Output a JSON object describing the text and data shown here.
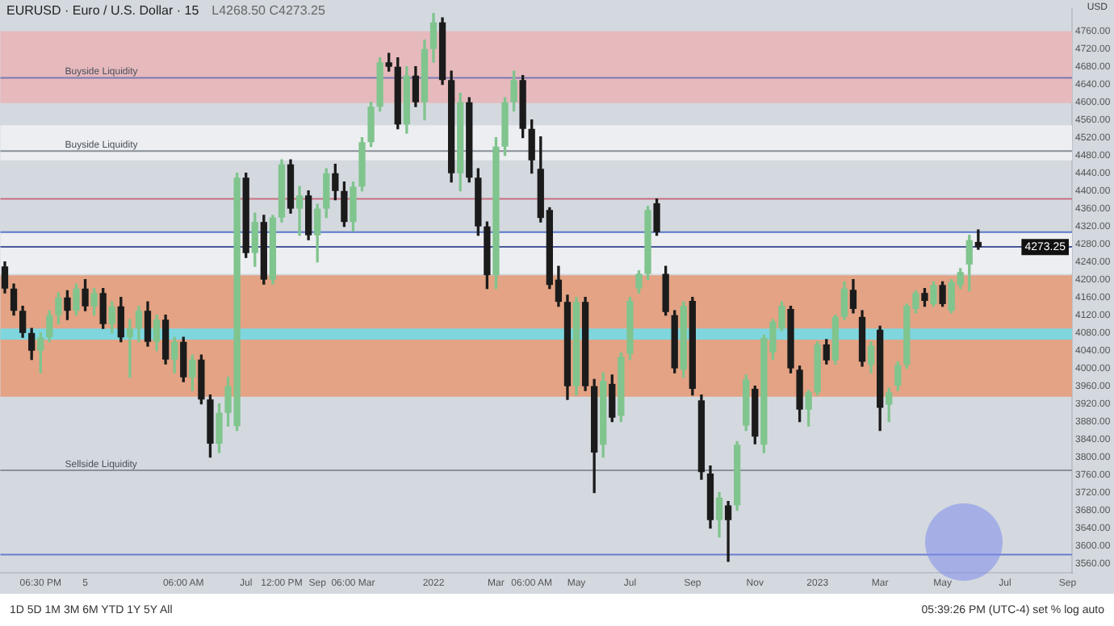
{
  "chart_data": {
    "type": "candlestick",
    "title": "EURUSD · Euro / U.S. Dollar · 15",
    "subtitle": "L4268.50 C4273.25",
    "categories": [
      null,
      null,
      null,
      null,
      "06:30 PM",
      null,
      null,
      null,
      null,
      "5",
      null,
      null,
      null,
      null,
      null,
      null,
      null,
      null,
      null,
      null,
      "06:00 AM",
      null,
      null,
      null,
      null,
      null,
      null,
      "Jul",
      null,
      null,
      null,
      "12:00 PM",
      null,
      null,
      null,
      "Sep",
      null,
      null,
      null,
      "06:00 Mar",
      null,
      null,
      null,
      null,
      null,
      null,
      null,
      null,
      "2022",
      null,
      null,
      null,
      null,
      null,
      null,
      "Mar",
      null,
      null,
      null,
      "06:00 AM",
      null,
      null,
      null,
      null,
      "May",
      null,
      null,
      null,
      null,
      null,
      "Jul",
      null,
      null,
      null,
      null,
      null,
      null,
      "Sep",
      null,
      null,
      null,
      null,
      null,
      null,
      "Nov",
      null,
      null,
      null,
      null,
      null,
      null,
      "2023",
      null,
      null,
      null,
      null,
      null,
      null,
      "Mar",
      null,
      null,
      null,
      null,
      null,
      null,
      "May",
      null,
      null,
      null,
      null,
      null,
      null,
      "Jul",
      null,
      null,
      null,
      null,
      null,
      null,
      "Sep"
    ],
    "ohlc": [
      [
        4230,
        4240,
        4170,
        4180
      ],
      [
        4180,
        4190,
        4120,
        4130
      ],
      [
        4130,
        4140,
        4070,
        4080
      ],
      [
        4080,
        4090,
        4020,
        4040
      ],
      [
        4040,
        4080,
        3990,
        4070
      ],
      [
        4070,
        4130,
        4060,
        4120
      ],
      [
        4120,
        4170,
        4100,
        4160
      ],
      [
        4160,
        4175,
        4110,
        4130
      ],
      [
        4130,
        4190,
        4120,
        4180
      ],
      [
        4180,
        4200,
        4130,
        4140
      ],
      [
        4140,
        4180,
        4120,
        4170
      ],
      [
        4170,
        4180,
        4090,
        4100
      ],
      [
        4100,
        4150,
        4080,
        4140
      ],
      [
        4140,
        4160,
        4060,
        4070
      ],
      [
        4070,
        4110,
        3980,
        4090
      ],
      [
        4090,
        4140,
        4060,
        4130
      ],
      [
        4130,
        4150,
        4050,
        4060
      ],
      [
        4060,
        4120,
        4040,
        4110
      ],
      [
        4110,
        4120,
        4010,
        4020
      ],
      [
        4020,
        4070,
        3990,
        4060
      ],
      [
        4060,
        4070,
        3970,
        3980
      ],
      [
        3980,
        4030,
        3950,
        4020
      ],
      [
        4020,
        4030,
        3920,
        3930
      ],
      [
        3930,
        3940,
        3800,
        3830
      ],
      [
        3830,
        3920,
        3810,
        3900
      ],
      [
        3900,
        3980,
        3870,
        3960
      ],
      [
        3870,
        4440,
        3860,
        4430
      ],
      [
        4430,
        4440,
        4250,
        4260
      ],
      [
        4260,
        4350,
        4230,
        4330
      ],
      [
        4330,
        4345,
        4190,
        4200
      ],
      [
        4200,
        4345,
        4190,
        4340
      ],
      [
        4340,
        4470,
        4330,
        4460
      ],
      [
        4460,
        4470,
        4350,
        4360
      ],
      [
        4360,
        4410,
        4300,
        4390
      ],
      [
        4390,
        4400,
        4290,
        4300
      ],
      [
        4300,
        4370,
        4240,
        4360
      ],
      [
        4360,
        4450,
        4340,
        4440
      ],
      [
        4440,
        4460,
        4380,
        4400
      ],
      [
        4400,
        4420,
        4320,
        4330
      ],
      [
        4330,
        4420,
        4310,
        4410
      ],
      [
        4410,
        4520,
        4400,
        4510
      ],
      [
        4510,
        4600,
        4500,
        4590
      ],
      [
        4590,
        4700,
        4580,
        4690
      ],
      [
        4690,
        4710,
        4670,
        4680
      ],
      [
        4680,
        4700,
        4540,
        4550
      ],
      [
        4550,
        4680,
        4530,
        4660
      ],
      [
        4660,
        4680,
        4590,
        4600
      ],
      [
        4600,
        4740,
        4560,
        4720
      ],
      [
        4720,
        4800,
        4690,
        4780
      ],
      [
        4780,
        4790,
        4640,
        4650
      ],
      [
        4650,
        4670,
        4420,
        4440
      ],
      [
        4440,
        4620,
        4400,
        4600
      ],
      [
        4600,
        4610,
        4420,
        4430
      ],
      [
        4430,
        4450,
        4300,
        4320
      ],
      [
        4320,
        4330,
        4180,
        4210
      ],
      [
        4210,
        4520,
        4180,
        4500
      ],
      [
        4500,
        4610,
        4480,
        4600
      ],
      [
        4600,
        4670,
        4580,
        4650
      ],
      [
        4650,
        4660,
        4520,
        4540
      ],
      [
        4540,
        4560,
        4440,
        4469
      ],
      [
        4450,
        4522,
        4330,
        4339
      ],
      [
        4357,
        4362,
        4180,
        4188
      ],
      [
        4200,
        4230,
        4140,
        4150
      ],
      [
        4150,
        4165,
        3930,
        3960
      ],
      [
        3960,
        4160,
        3940,
        4150
      ],
      [
        4150,
        4160,
        3950,
        3960
      ],
      [
        3960,
        3975,
        3720,
        3810
      ],
      [
        3828,
        3990,
        3800,
        3972
      ],
      [
        3965,
        3985,
        3880,
        3889
      ],
      [
        3893,
        4035,
        3880,
        4026
      ],
      [
        4033,
        4160,
        4020,
        4152
      ],
      [
        4180,
        4220,
        4170,
        4213
      ],
      [
        4213,
        4365,
        4200,
        4357
      ],
      [
        4372,
        4382,
        4300,
        4307
      ],
      [
        4213,
        4230,
        4120,
        4127
      ],
      [
        4120,
        4130,
        3990,
        4000
      ],
      [
        3997,
        4150,
        3980,
        4141
      ],
      [
        4152,
        4160,
        3940,
        3954
      ],
      [
        3928,
        3940,
        3750,
        3766
      ],
      [
        3763,
        3780,
        3640,
        3658
      ],
      [
        3658,
        3720,
        3620,
        3709
      ],
      [
        3691,
        3700,
        3565,
        3658
      ],
      [
        3691,
        3835,
        3680,
        3828
      ],
      [
        3871,
        3985,
        3860,
        3975
      ],
      [
        3954,
        3960,
        3830,
        3846
      ],
      [
        3828,
        4075,
        3810,
        4069
      ],
      [
        4036,
        4110,
        4020,
        4105
      ],
      [
        4090,
        4150,
        4085,
        4141
      ],
      [
        4134,
        4140,
        3990,
        4000
      ],
      [
        3997,
        4005,
        3880,
        3907
      ],
      [
        3907,
        3950,
        3870,
        3946
      ],
      [
        3946,
        4060,
        3940,
        4054
      ],
      [
        4054,
        4065,
        4010,
        4018
      ],
      [
        4018,
        4120,
        4010,
        4116
      ],
      [
        4116,
        4195,
        4110,
        4180
      ],
      [
        4177,
        4200,
        4125,
        4134
      ],
      [
        4116,
        4130,
        4005,
        4015
      ],
      [
        4008,
        4060,
        3990,
        4051
      ],
      [
        4087,
        4095,
        3860,
        3911
      ],
      [
        3918,
        3955,
        3880,
        3946
      ],
      [
        3961,
        4015,
        3950,
        4008
      ],
      [
        4008,
        4145,
        4000,
        4141
      ],
      [
        4134,
        4175,
        4125,
        4170
      ],
      [
        4170,
        4180,
        4140,
        4152
      ],
      [
        4145,
        4195,
        4140,
        4188
      ],
      [
        4188,
        4195,
        4140,
        4145
      ],
      [
        4130,
        4200,
        4125,
        4195
      ],
      [
        4188,
        4225,
        4180,
        4217
      ],
      [
        4234,
        4300,
        4175,
        4289
      ],
      [
        4285,
        4312,
        4268.5,
        4273.25
      ],
      null,
      null,
      null,
      null,
      null,
      null,
      null,
      null,
      null,
      null
    ],
    "colors": [
      "#1b1b1b",
      "#1b1b1b",
      "#1b1b1b",
      "#1b1b1b",
      "#80c48e",
      "#80c48e",
      "#80c48e",
      "#1b1b1b",
      "#80c48e",
      "#1b1b1b",
      "#80c48e",
      "#1b1b1b",
      "#80c48e",
      "#1b1b1b",
      "#80c48e",
      "#80c48e",
      "#1b1b1b",
      "#80c48e",
      "#1b1b1b",
      "#80c48e",
      "#1b1b1b",
      "#80c48e",
      "#1b1b1b",
      "#1b1b1b",
      "#80c48e",
      "#80c48e",
      "#80c48e",
      "#1b1b1b",
      "#80c48e",
      "#1b1b1b",
      "#80c48e",
      "#80c48e",
      "#1b1b1b",
      "#80c48e",
      "#1b1b1b",
      "#80c48e",
      "#80c48e",
      "#1b1b1b",
      "#1b1b1b",
      "#80c48e",
      "#80c48e",
      "#80c48e",
      "#80c48e",
      "#1b1b1b",
      "#1b1b1b",
      "#80c48e",
      "#1b1b1b",
      "#80c48e",
      "#80c48e",
      "#1b1b1b",
      "#1b1b1b",
      "#80c48e",
      "#1b1b1b",
      "#1b1b1b",
      "#1b1b1b",
      "#80c48e",
      "#80c48e",
      "#80c48e",
      "#1b1b1b",
      "#1b1b1b",
      "#1b1b1b",
      "#1b1b1b",
      "#1b1b1b",
      "#1b1b1b",
      "#80c48e",
      "#1b1b1b",
      "#1b1b1b",
      "#80c48e",
      "#1b1b1b",
      "#80c48e",
      "#80c48e",
      "#80c48e",
      "#80c48e",
      "#1b1b1b",
      "#1b1b1b",
      "#1b1b1b",
      "#80c48e",
      "#1b1b1b",
      "#1b1b1b",
      "#1b1b1b",
      "#80c48e",
      "#1b1b1b",
      "#80c48e",
      "#80c48e",
      "#1b1b1b",
      "#80c48e",
      "#80c48e",
      "#80c48e",
      "#1b1b1b",
      "#1b1b1b",
      "#80c48e",
      "#80c48e",
      "#1b1b1b",
      "#80c48e",
      "#80c48e",
      "#1b1b1b",
      "#1b1b1b",
      "#80c48e",
      "#1b1b1b",
      "#80c48e",
      "#80c48e",
      "#80c48e",
      "#80c48e",
      "#1b1b1b",
      "#80c48e",
      "#1b1b1b",
      "#80c48e",
      "#80c48e",
      "#80c48e",
      "#1b1b1b",
      null,
      null,
      null,
      null,
      null,
      null,
      null,
      null,
      null,
      null
    ],
    "ylim": [
      3540,
      4810
    ],
    "yticks": [
      {
        "value": 3560,
        "label": "3560.00"
      },
      {
        "value": 3600,
        "label": "3600.00"
      },
      {
        "value": 3640,
        "label": "3640.00"
      },
      {
        "value": 3680,
        "label": "3680.00"
      },
      {
        "value": 3720,
        "label": "3720.00"
      },
      {
        "value": 3760,
        "label": "3760.00"
      },
      {
        "value": 3800,
        "label": "3800.00"
      },
      {
        "value": 3840,
        "label": "3840.00"
      },
      {
        "value": 3880,
        "label": "3880.00"
      },
      {
        "value": 3920,
        "label": "3920.00"
      },
      {
        "value": 3960,
        "label": "3960.00"
      },
      {
        "value": 4000,
        "label": "4000.00"
      },
      {
        "value": 4040,
        "label": "4040.00"
      },
      {
        "value": 4080,
        "label": "4080.00"
      },
      {
        "value": 4120,
        "label": "4120.00"
      },
      {
        "value": 4160,
        "label": "4160.00"
      },
      {
        "value": 4200,
        "label": "4200.00"
      },
      {
        "value": 4240,
        "label": "4240.00"
      },
      {
        "value": 4280,
        "label": "4280.00"
      },
      {
        "value": 4320,
        "label": "4320.00"
      },
      {
        "value": 4360,
        "label": "4360.00"
      },
      {
        "value": 4400,
        "label": "4400.00"
      },
      {
        "value": 4440,
        "label": "4440.00"
      },
      {
        "value": 4480,
        "label": "4480.00"
      },
      {
        "value": 4520,
        "label": "4520.00"
      },
      {
        "value": 4560,
        "label": "4560.00"
      },
      {
        "value": 4600,
        "label": "4600.00"
      },
      {
        "value": 4640,
        "label": "4640.00"
      },
      {
        "value": 4680,
        "label": "4680.00"
      },
      {
        "value": 4720,
        "label": "4720.00"
      },
      {
        "value": 4760,
        "label": "4760.00"
      }
    ],
    "grid": false,
    "bands": [
      {
        "axis": "y",
        "from": 4598,
        "to": 4760,
        "color": "#e6b9bd"
      },
      {
        "axis": "y",
        "from": 4469,
        "to": 4548,
        "color": "#eceef1"
      },
      {
        "axis": "y",
        "from": 4213,
        "to": 4307,
        "color": "#eceef1"
      },
      {
        "axis": "y",
        "from": 3936,
        "to": 4210,
        "color": "#e3a384"
      },
      {
        "axis": "y",
        "from": 4065,
        "to": 4090,
        "color": "#7fd6df"
      }
    ],
    "ref_lines": [
      {
        "axis": "y",
        "value": 4382,
        "color": "#c87080"
      },
      {
        "axis": "y",
        "value": 4307,
        "color": "#5a78c8"
      },
      {
        "axis": "y",
        "value": 4274,
        "color": "#4a5898"
      },
      {
        "axis": "y",
        "value": 3580,
        "color": "#6a7cd0"
      },
      {
        "axis": "y",
        "value": 4490,
        "label": "Buyside Liquidity",
        "color": "#8a9098"
      },
      {
        "axis": "y",
        "value": 4655,
        "label": "Buyside Liquidity",
        "color": "#7a7ab0"
      },
      {
        "axis": "y",
        "value": 3770,
        "label": "Sellside Liquidity",
        "color": "#8a9098"
      }
    ],
    "annotations": [
      {
        "text": "4273.25",
        "y": 4273.25
      },
      "USD",
      "1D 5D 1M 3M 6M YTD 1Y 5Y All",
      "05:39:26 PM (UTC-4)",
      "set  %  log  auto"
    ]
  }
}
